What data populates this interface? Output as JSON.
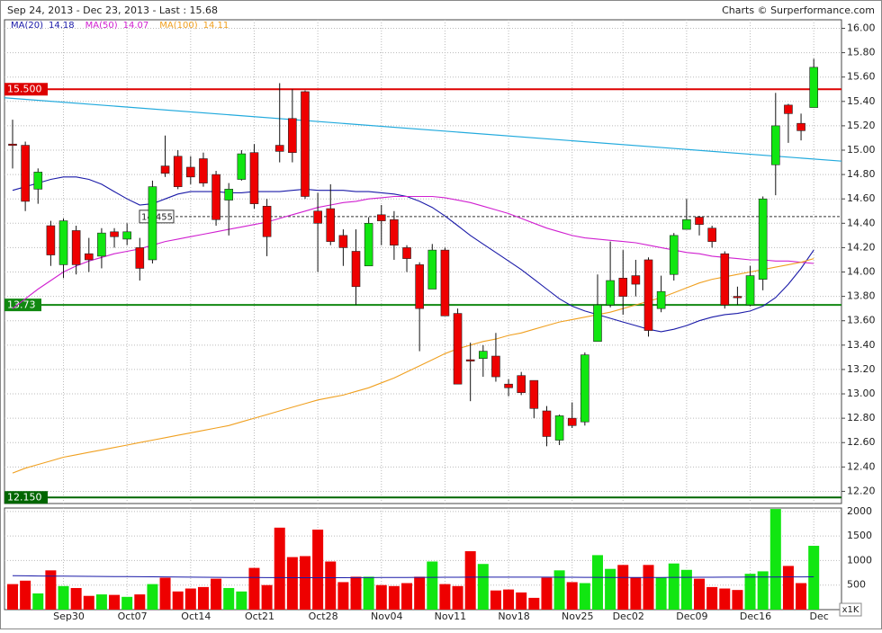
{
  "chart_data": {
    "type": "candlestick",
    "title": "Sep 24, 2013 - Dec 23, 2013 - Last : 15.68",
    "source": "Charts © Surperformance.com",
    "categories": [
      null,
      null,
      null,
      null,
      "Sep30",
      null,
      null,
      null,
      null,
      "Oct07",
      null,
      null,
      null,
      null,
      "Oct14",
      null,
      null,
      null,
      null,
      "Oct21",
      null,
      null,
      null,
      null,
      "Oct28",
      null,
      null,
      null,
      null,
      "Nov04",
      null,
      null,
      null,
      null,
      "Nov11",
      null,
      null,
      null,
      null,
      "Nov18",
      null,
      null,
      null,
      null,
      "Nov25",
      null,
      null,
      null,
      "Dec02",
      null,
      null,
      null,
      null,
      "Dec09",
      null,
      null,
      null,
      null,
      "Dec16",
      null,
      null,
      null,
      null,
      "Dec"
    ],
    "open": [
      15.05,
      15.04,
      14.68,
      14.38,
      14.06,
      14.34,
      14.15,
      14.13,
      14.33,
      14.27,
      14.2,
      14.1,
      14.87,
      14.95,
      14.86,
      14.93,
      14.8,
      14.59,
      14.76,
      14.98,
      14.54,
      15.04,
      15.26,
      15.48,
      14.5,
      14.52,
      14.3,
      14.17,
      14.05,
      14.47,
      14.43,
      14.2,
      14.06,
      13.86,
      14.18,
      13.66,
      13.28,
      13.29,
      13.31,
      13.08,
      13.15,
      13.11,
      12.86,
      12.62,
      12.8,
      12.77,
      13.43,
      13.73,
      13.95,
      13.97,
      14.1,
      13.7,
      13.98,
      14.35,
      14.45,
      14.36,
      14.15,
      13.8,
      13.73,
      13.94,
      14.88,
      15.37,
      15.22,
      15.35
    ],
    "high": [
      15.25,
      15.07,
      14.85,
      14.42,
      14.44,
      14.38,
      14.28,
      14.36,
      14.36,
      14.4,
      14.28,
      14.75,
      15.12,
      15.0,
      14.95,
      14.98,
      14.83,
      14.73,
      15.0,
      15.05,
      14.6,
      15.55,
      15.5,
      15.49,
      14.65,
      14.72,
      14.35,
      14.35,
      14.45,
      14.55,
      14.5,
      14.22,
      14.08,
      14.23,
      14.2,
      13.7,
      13.42,
      13.4,
      13.5,
      13.12,
      13.18,
      13.11,
      12.9,
      12.83,
      12.93,
      13.34,
      13.98,
      14.25,
      14.18,
      14.1,
      14.12,
      13.97,
      14.32,
      14.6,
      14.46,
      14.38,
      14.17,
      13.88,
      14.05,
      14.62,
      15.47,
      15.38,
      15.3,
      15.75
    ],
    "low": [
      14.85,
      14.5,
      14.56,
      14.05,
      13.95,
      13.98,
      14.0,
      14.03,
      14.2,
      14.22,
      13.93,
      14.07,
      14.78,
      14.68,
      14.72,
      14.7,
      14.38,
      14.3,
      14.75,
      14.52,
      14.13,
      14.9,
      14.9,
      14.6,
      14.0,
      14.22,
      14.05,
      13.73,
      14.05,
      14.22,
      14.1,
      14.0,
      13.35,
      13.86,
      13.64,
      13.08,
      12.94,
      13.14,
      13.1,
      12.98,
      12.99,
      12.8,
      12.57,
      12.58,
      12.72,
      12.74,
      13.43,
      13.71,
      13.65,
      13.8,
      13.47,
      13.67,
      13.93,
      14.35,
      14.3,
      14.2,
      13.7,
      13.73,
      13.72,
      13.85,
      14.63,
      15.06,
      15.08,
      15.35
    ],
    "close": [
      15.04,
      14.58,
      14.82,
      14.14,
      14.42,
      14.06,
      14.1,
      14.32,
      14.29,
      14.33,
      14.03,
      14.7,
      14.81,
      14.7,
      14.78,
      14.73,
      14.43,
      14.68,
      14.97,
      14.56,
      14.29,
      14.99,
      14.98,
      14.62,
      14.4,
      14.25,
      14.2,
      13.88,
      14.4,
      14.42,
      14.22,
      14.11,
      13.7,
      14.18,
      13.64,
      13.08,
      13.27,
      13.35,
      13.14,
      13.05,
      13.01,
      12.88,
      12.65,
      12.82,
      12.74,
      13.32,
      13.73,
      13.93,
      13.8,
      13.9,
      13.52,
      13.84,
      14.3,
      14.43,
      14.39,
      14.25,
      13.73,
      13.79,
      13.97,
      14.6,
      15.2,
      15.3,
      15.16,
      15.68
    ],
    "up_color": "#11e611",
    "down_color": "#ee0000",
    "ylim": [
      12.1,
      16.07
    ],
    "yticks": [
      {
        "value": 12.2,
        "label": "12.20"
      },
      {
        "value": 12.4,
        "label": "12.40"
      },
      {
        "value": 12.6,
        "label": "12.60"
      },
      {
        "value": 12.8,
        "label": "12.80"
      },
      {
        "value": 13.0,
        "label": "13.00"
      },
      {
        "value": 13.2,
        "label": "13.20"
      },
      {
        "value": 13.4,
        "label": "13.40"
      },
      {
        "value": 13.6,
        "label": "13.60"
      },
      {
        "value": 13.8,
        "label": "13.80"
      },
      {
        "value": 14.0,
        "label": "14.00"
      },
      {
        "value": 14.2,
        "label": "14.20"
      },
      {
        "value": 14.4,
        "label": "14.40"
      },
      {
        "value": 14.6,
        "label": "14.60"
      },
      {
        "value": 14.8,
        "label": "14.80"
      },
      {
        "value": 15.0,
        "label": "15.00"
      },
      {
        "value": 15.2,
        "label": "15.20"
      },
      {
        "value": 15.4,
        "label": "15.40"
      },
      {
        "value": 15.6,
        "label": "15.60"
      },
      {
        "value": 15.8,
        "label": "15.80"
      },
      {
        "value": 16.0,
        "label": "16.00"
      }
    ],
    "grid": true,
    "moving_averages": [
      {
        "name": "MA(20)",
        "last": 14.18,
        "color": "#1a1aa8",
        "values": [
          14.67,
          14.7,
          14.73,
          14.76,
          14.78,
          14.78,
          14.76,
          14.72,
          14.66,
          14.6,
          14.55,
          14.56,
          14.6,
          14.64,
          14.66,
          14.66,
          14.66,
          14.65,
          14.65,
          14.66,
          14.66,
          14.66,
          14.67,
          14.68,
          14.67,
          14.67,
          14.67,
          14.66,
          14.66,
          14.65,
          14.64,
          14.62,
          14.58,
          14.53,
          14.46,
          14.38,
          14.3,
          14.23,
          14.16,
          14.09,
          14.02,
          13.94,
          13.86,
          13.78,
          13.72,
          13.68,
          13.65,
          13.62,
          13.59,
          13.56,
          13.53,
          13.51,
          13.53,
          13.56,
          13.6,
          13.63,
          13.65,
          13.66,
          13.68,
          13.72,
          13.79,
          13.9,
          14.03,
          14.18
        ]
      },
      {
        "name": "MA(50)",
        "last": 14.07,
        "color": "#d020d0",
        "values": [
          13.7,
          13.78,
          13.86,
          13.93,
          14.0,
          14.05,
          14.09,
          14.12,
          14.15,
          14.17,
          14.19,
          14.22,
          14.25,
          14.27,
          14.29,
          14.31,
          14.33,
          14.35,
          14.37,
          14.39,
          14.41,
          14.44,
          14.47,
          14.5,
          14.53,
          14.55,
          14.57,
          14.58,
          14.6,
          14.61,
          14.62,
          14.62,
          14.62,
          14.62,
          14.61,
          14.59,
          14.57,
          14.54,
          14.51,
          14.48,
          14.44,
          14.4,
          14.36,
          14.33,
          14.3,
          14.28,
          14.27,
          14.26,
          14.25,
          14.24,
          14.22,
          14.2,
          14.18,
          14.16,
          14.15,
          14.13,
          14.12,
          14.11,
          14.1,
          14.1,
          14.09,
          14.09,
          14.08,
          14.07
        ]
      },
      {
        "name": "MA(100)",
        "last": 14.11,
        "color": "#f0a020",
        "values": [
          12.35,
          12.39,
          12.42,
          12.45,
          12.48,
          12.5,
          12.52,
          12.54,
          12.56,
          12.58,
          12.6,
          12.62,
          12.64,
          12.66,
          12.68,
          12.7,
          12.72,
          12.74,
          12.77,
          12.8,
          12.83,
          12.86,
          12.89,
          12.92,
          12.95,
          12.97,
          12.99,
          13.02,
          13.05,
          13.09,
          13.13,
          13.18,
          13.23,
          13.28,
          13.33,
          13.37,
          13.4,
          13.43,
          13.45,
          13.48,
          13.5,
          13.53,
          13.56,
          13.59,
          13.61,
          13.63,
          13.65,
          13.67,
          13.7,
          13.73,
          13.76,
          13.79,
          13.83,
          13.87,
          13.91,
          13.94,
          13.96,
          13.98,
          14.0,
          14.02,
          14.04,
          14.06,
          14.08,
          14.11
        ]
      }
    ],
    "levels": [
      {
        "value": 15.5,
        "label": "15.500",
        "color": "#dd0000"
      },
      {
        "value": 13.73,
        "label": "13.73",
        "color": "#118811"
      },
      {
        "value": 12.15,
        "label": "12.150",
        "color": "#006600"
      }
    ],
    "marker_level": 14.455,
    "trendline": {
      "color": "#22aadd",
      "values": [
        15.43,
        14.91
      ]
    },
    "volume": {
      "unit": "x1K",
      "values": [
        520,
        590,
        330,
        800,
        480,
        440,
        280,
        310,
        300,
        260,
        310,
        520,
        650,
        370,
        430,
        460,
        630,
        440,
        370,
        850,
        500,
        1670,
        1070,
        1090,
        1630,
        980,
        560,
        670,
        670,
        500,
        480,
        540,
        670,
        980,
        520,
        480,
        1190,
        930,
        390,
        410,
        350,
        240,
        650,
        800,
        560,
        540,
        1110,
        830,
        910,
        650,
        910,
        650,
        940,
        810,
        630,
        460,
        430,
        400,
        730,
        780,
        2050,
        890,
        540,
        1300
      ],
      "ma_color": "#1a1aa8",
      "ma_values": [
        690,
        688,
        686,
        684,
        682,
        680,
        678,
        676,
        674,
        672,
        670,
        668,
        666,
        664,
        662,
        660,
        658,
        656,
        655,
        654,
        653,
        652,
        651,
        650,
        650,
        650,
        651,
        652,
        653,
        654,
        655,
        656,
        657,
        658,
        659,
        660,
        661,
        662,
        662,
        662,
        662,
        662,
        661,
        660,
        659,
        658,
        657,
        656,
        655,
        655,
        655,
        656,
        657,
        658,
        659,
        660,
        661,
        662,
        663,
        664,
        665,
        666,
        667,
        668
      ],
      "ylim": [
        0,
        2070
      ],
      "yticks": [
        500,
        1000,
        1500,
        2000
      ]
    }
  }
}
